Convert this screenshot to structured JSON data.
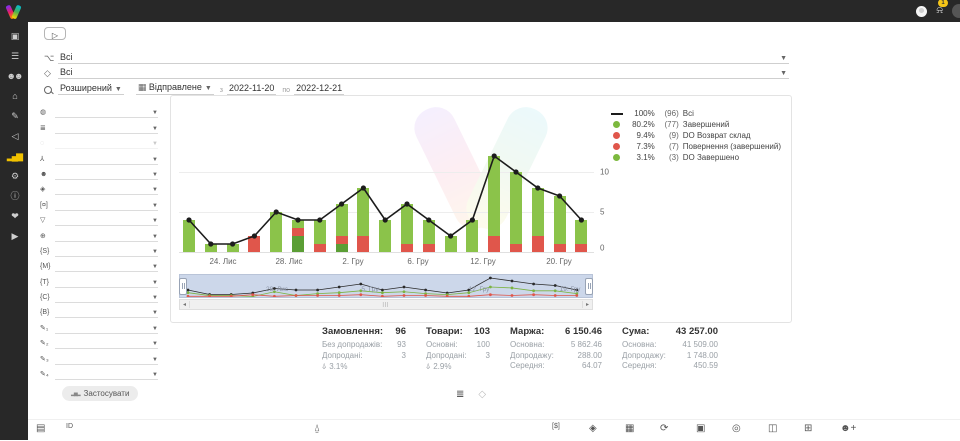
{
  "topbar": {
    "notification_badge": "1"
  },
  "sidebar": {
    "active_color": "#f2c200",
    "items": [
      {
        "name": "cards-icon",
        "glyph": "▣"
      },
      {
        "name": "orders-list-icon",
        "glyph": "☰"
      },
      {
        "name": "clients-icon",
        "glyph": "☻☻"
      },
      {
        "name": "warehouse-icon",
        "glyph": "⌂"
      },
      {
        "name": "signature-icon",
        "glyph": "✎"
      },
      {
        "name": "announce-icon",
        "glyph": "◁"
      },
      {
        "name": "analytics-icon",
        "glyph": "▂▄▆",
        "active": true
      },
      {
        "name": "settings-icon",
        "glyph": "⚙"
      },
      {
        "name": "info-icon",
        "glyph": "ⓘ"
      },
      {
        "name": "partners-icon",
        "glyph": "❤"
      },
      {
        "name": "tutorials-icon",
        "glyph": "▶"
      }
    ]
  },
  "controls": {
    "demo_button_glyph": "▷",
    "source_filter": {
      "icon_glyph": "⌥",
      "value": "Всі"
    },
    "product_filter": {
      "icon_glyph": "◇",
      "value": "Всі"
    },
    "search_mode_value": "Розширений",
    "date_type_value": "Відправлене",
    "date_type_icon_glyph": "▦",
    "date_from_label": "з",
    "date_from": "2022-11-20",
    "date_to_label": "по",
    "date_to": "2022-12-21"
  },
  "filter_panel": {
    "apply_label": "Застосувати",
    "apply_icon_glyph": "▂▅▂",
    "rows": [
      {
        "name": "globe-icon",
        "glyph": "◍"
      },
      {
        "name": "status-stack-icon",
        "glyph": "≣"
      },
      {
        "name": "help-circle-icon",
        "glyph": "◌",
        "disabled": true
      },
      {
        "name": "sitemap-icon",
        "glyph": "⅄"
      },
      {
        "name": "manager-icon",
        "glyph": "☻"
      },
      {
        "name": "package-icon",
        "glyph": "◈"
      },
      {
        "name": "payment-icon",
        "glyph": "[¤]"
      },
      {
        "name": "funnel-icon",
        "glyph": "▽"
      },
      {
        "name": "web-globe-icon",
        "glyph": "⊕"
      },
      {
        "name": "bracket-s-icon",
        "glyph": "{S}"
      },
      {
        "name": "bracket-m-icon",
        "glyph": "{M}"
      },
      {
        "name": "bracket-t-icon",
        "glyph": "{T}"
      },
      {
        "name": "bracket-ct-icon",
        "glyph": "{C}"
      },
      {
        "name": "bracket-cb-icon",
        "glyph": "{B}"
      },
      {
        "name": "custom-field-1-icon",
        "glyph": "✎₁"
      },
      {
        "name": "custom-field-2-icon",
        "glyph": "✎₂"
      },
      {
        "name": "custom-field-3-icon",
        "glyph": "✎₃"
      },
      {
        "name": "custom-field-4-icon",
        "glyph": "✎₄"
      }
    ]
  },
  "chart_data": {
    "type": "bar",
    "stacked": true,
    "with_line_overlay": true,
    "n_points": 19,
    "x_tick_labels": [
      "24. Лис",
      "28. Лис",
      "2. Гру",
      "6. Гру",
      "12. Гру",
      "20. Гру"
    ],
    "y_ticks": [
      0,
      5,
      10
    ],
    "ylim": [
      0,
      13
    ],
    "grid": true,
    "series": [
      {
        "name": "Всі",
        "type": "line",
        "color": "#1c1c1c",
        "values": [
          4,
          1,
          1,
          2,
          5,
          4,
          4,
          6,
          8,
          4,
          6,
          4,
          2,
          4,
          12,
          10,
          8,
          7,
          4
        ]
      },
      {
        "name": "Завершений",
        "type": "bar",
        "color": "#8bc34a",
        "values": [
          4,
          1,
          1,
          0,
          5,
          1,
          3,
          4,
          6,
          4,
          5,
          3,
          2,
          4,
          10,
          9,
          6,
          6,
          3
        ]
      },
      {
        "name": "Повернення / DO Возврат склад",
        "type": "bar",
        "color": "#e0564b",
        "values": [
          0,
          0,
          0,
          2,
          0,
          1,
          1,
          1,
          2,
          0,
          1,
          1,
          0,
          0,
          2,
          1,
          2,
          1,
          1
        ]
      },
      {
        "name": "DO Завершено",
        "type": "bar",
        "color": "#5b9e35",
        "values": [
          0,
          0,
          0,
          0,
          0,
          2,
          0,
          1,
          0,
          0,
          0,
          0,
          0,
          0,
          0,
          0,
          0,
          0,
          0
        ]
      }
    ],
    "legend": [
      {
        "swatch": "line",
        "color": "#1c1c1c",
        "pct": "100%",
        "count": "(96)",
        "label": "Всі"
      },
      {
        "swatch": "dot",
        "color": "#7cb93e",
        "pct": "80.2%",
        "count": "(77)",
        "label": "Завершений"
      },
      {
        "swatch": "dot",
        "color": "#e0564b",
        "pct": "9.4%",
        "count": "(9)",
        "label": "DO Возврат склад"
      },
      {
        "swatch": "dot",
        "color": "#e0564b",
        "pct": "7.3%",
        "count": "(7)",
        "label": "Повернення (завершений)"
      },
      {
        "swatch": "dot",
        "color": "#7cb93e",
        "pct": "3.1%",
        "count": "(3)",
        "label": "DO Завершено"
      }
    ],
    "navigator_labels": [
      "28. Лис",
      "5. Гру",
      "12. Гру",
      "19. Гру"
    ]
  },
  "stats": {
    "columns": [
      {
        "title": "Замовлення:",
        "value": "96",
        "rows": [
          {
            "label": "Без допродажів:",
            "value": "93"
          },
          {
            "label": "Допродані:",
            "value": "3"
          }
        ],
        "footer": {
          "icon": "basket-icon",
          "glyph": "⍙",
          "value": "3.1%"
        }
      },
      {
        "title": "Товари:",
        "value": "103",
        "rows": [
          {
            "label": "Основні:",
            "value": "100"
          },
          {
            "label": "Допродані:",
            "value": "3"
          }
        ],
        "footer": {
          "icon": "basket-icon",
          "glyph": "⍙",
          "value": "2.9%"
        }
      },
      {
        "title": "Маржа:",
        "value": "6 150.46",
        "rows": [
          {
            "label": "Основна:",
            "value": "5 862.46"
          },
          {
            "label": "Допродажу:",
            "value": "288.00"
          },
          {
            "label": "Середня:",
            "value": "64.07"
          }
        ]
      },
      {
        "title": "Сума:",
        "value": "43 257.00",
        "rows": [
          {
            "label": "Основна:",
            "value": "41 509.00"
          },
          {
            "label": "Допродажу:",
            "value": "1 748.00"
          },
          {
            "label": "Середня:",
            "value": "450.59"
          }
        ]
      }
    ]
  },
  "view_toggles": [
    {
      "name": "list-view-icon",
      "glyph": "≣",
      "active": true
    },
    {
      "name": "product-view-icon",
      "glyph": "◇",
      "active": false
    }
  ],
  "bottom_toolbar": [
    {
      "name": "table-view-icon",
      "glyph": "▤"
    },
    {
      "name": "id-columns-icon",
      "glyph": "ID"
    },
    {
      "name": "basket-icon",
      "glyph": "⍙"
    },
    {
      "name": "money-icon",
      "glyph": "[$]"
    },
    {
      "name": "gem-icon",
      "glyph": "◈"
    },
    {
      "name": "calendar-icon",
      "glyph": "▦"
    },
    {
      "name": "history-icon",
      "glyph": "⟳"
    },
    {
      "name": "calendar-event-icon",
      "glyph": "▣"
    },
    {
      "name": "target-icon",
      "glyph": "◎"
    },
    {
      "name": "package-box-icon",
      "glyph": "◫"
    },
    {
      "name": "board-icon",
      "glyph": "⊞"
    },
    {
      "name": "add-user-icon",
      "glyph": "☻+"
    }
  ]
}
